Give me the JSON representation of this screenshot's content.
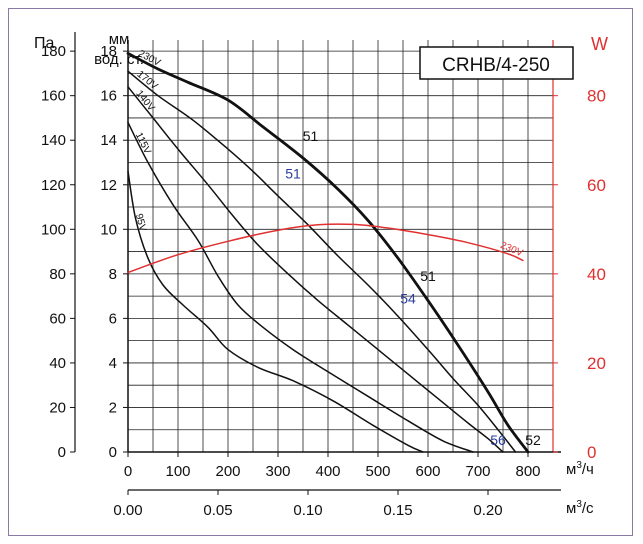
{
  "chart_data": {
    "type": "line",
    "title": "CRHB/4-250",
    "left_axes": {
      "outer_label": "Па",
      "outer_ticks": [
        0,
        20,
        40,
        60,
        80,
        100,
        120,
        140,
        160,
        180
      ],
      "inner_label_line1": "мм",
      "inner_label_line2": "вод. ст.",
      "inner_ticks": [
        0,
        2,
        4,
        6,
        8,
        10,
        12,
        14,
        16,
        18
      ],
      "ylim": [
        0,
        18.5
      ]
    },
    "right_axis": {
      "label": "W",
      "ticks": [
        0,
        20,
        40,
        60,
        80
      ],
      "color": "#e03030",
      "ylim": [
        0,
        92.5
      ]
    },
    "x_axis_top": {
      "label": "м3/ч",
      "ticks": [
        0,
        100,
        200,
        300,
        400,
        500,
        600,
        700,
        800
      ],
      "xlim": [
        0,
        850
      ]
    },
    "x_axis_bottom": {
      "label": "м3/с",
      "ticks": [
        "0.00",
        "0.05",
        "0.10",
        "0.15",
        "0.20"
      ]
    },
    "grid": true,
    "colors": {
      "curves": "#111111",
      "power": "#e03030",
      "blue_labels": "#2a3ea0",
      "frame": "#8a78a6"
    },
    "series": [
      {
        "name": "230V",
        "axis": "left_inner",
        "x": [
          0,
          60,
          120,
          200,
          270,
          350,
          420,
          480,
          540,
          600,
          660,
          720,
          760,
          800
        ],
        "y": [
          17.9,
          17.2,
          16.6,
          15.8,
          14.6,
          13.2,
          11.8,
          10.4,
          8.7,
          6.8,
          4.8,
          2.7,
          1.2,
          0
        ]
      },
      {
        "name": "170V",
        "axis": "left_inner",
        "x": [
          0,
          60,
          130,
          200,
          250,
          300,
          360,
          420,
          480,
          540,
          600,
          650,
          700,
          740,
          775
        ],
        "y": [
          17.1,
          16.0,
          14.9,
          13.6,
          12.6,
          11.5,
          10.2,
          8.8,
          7.5,
          6.1,
          4.6,
          3.3,
          2.1,
          1.0,
          0
        ]
      },
      {
        "name": "140V",
        "axis": "left_inner",
        "x": [
          0,
          50,
          100,
          160,
          210,
          260,
          320,
          380,
          440,
          500,
          560,
          620,
          680,
          720,
          750
        ],
        "y": [
          16.4,
          15.0,
          13.6,
          12.0,
          10.6,
          9.3,
          8.0,
          6.8,
          5.7,
          4.6,
          3.5,
          2.4,
          1.3,
          0.6,
          0
        ]
      },
      {
        "name": "115V",
        "axis": "left_inner",
        "x": [
          0,
          40,
          90,
          140,
          180,
          220,
          270,
          330,
          400,
          480,
          560,
          630,
          690
        ],
        "y": [
          14.8,
          13.0,
          11.1,
          9.5,
          7.9,
          6.6,
          5.6,
          4.6,
          3.6,
          2.5,
          1.4,
          0.5,
          0
        ]
      },
      {
        "name": "95V",
        "axis": "left_inner",
        "x": [
          0,
          15,
          40,
          70,
          110,
          160,
          200,
          260,
          330,
          410,
          490,
          560,
          590
        ],
        "y": [
          12.6,
          10.5,
          8.7,
          7.5,
          6.6,
          5.6,
          4.6,
          3.8,
          3.2,
          2.3,
          1.2,
          0.3,
          0
        ]
      },
      {
        "name": "230V",
        "axis": "right",
        "x": [
          0,
          100,
          200,
          300,
          380,
          450,
          520,
          600,
          680,
          760,
          790
        ],
        "y": [
          40.3,
          44.3,
          47.3,
          49.8,
          51.0,
          51.1,
          50.3,
          48.8,
          47.0,
          44.5,
          43.0
        ]
      }
    ],
    "curve_labels": [
      {
        "text": "230V",
        "series": 0,
        "at_x": 40
      },
      {
        "text": "170V",
        "series": 1,
        "at_x": 35
      },
      {
        "text": "140V",
        "series": 2,
        "at_x": 30
      },
      {
        "text": "115V",
        "series": 3,
        "at_x": 25
      },
      {
        "text": "95V",
        "series": 4,
        "at_x": 20
      },
      {
        "text": "230V",
        "series": 5,
        "at_x": 765
      }
    ],
    "annotations": [
      {
        "text": "51",
        "x": 365,
        "y": 14.2,
        "color": "curves"
      },
      {
        "text": "51",
        "x": 330,
        "y": 12.5,
        "color": "blue_labels"
      },
      {
        "text": "51",
        "x": 600,
        "y": 7.9,
        "color": "curves"
      },
      {
        "text": "54",
        "x": 560,
        "y": 6.9,
        "color": "blue_labels"
      },
      {
        "text": "56",
        "x": 740,
        "y": 0.55,
        "color": "blue_labels"
      },
      {
        "text": "52",
        "x": 810,
        "y": 0.55,
        "color": "curves"
      }
    ]
  }
}
